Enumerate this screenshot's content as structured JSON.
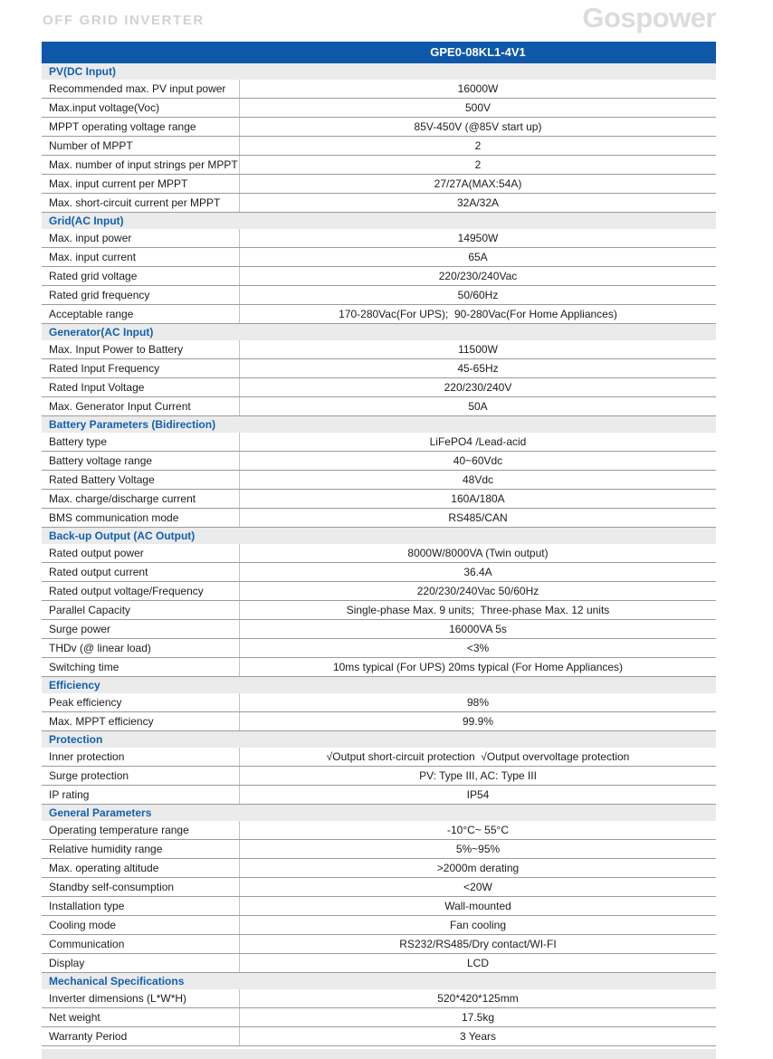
{
  "page": {
    "title": "OFF GRID INVERTER",
    "brand": "Gospower",
    "model": "GPE0-08KL1-4V1"
  },
  "colors": {
    "header_bar_blue": "#0f58a9",
    "section_title_blue": "#1360b0",
    "section_header_bg": "#ebebeb",
    "row_border_gray": "#9b9b9b",
    "title_gray": "#d2d2d6"
  },
  "sections": [
    {
      "title": "PV(DC Input)",
      "rows": [
        {
          "label": "Recommended max. PV input power",
          "value": "16000W"
        },
        {
          "label": "Max.input voltage(Voc)",
          "value": "500V"
        },
        {
          "label": "MPPT operating voltage range",
          "value": "85V-450V (@85V start up)"
        },
        {
          "label": "Number of MPPT",
          "value": "2"
        },
        {
          "label": "Max. number of input strings per MPPT",
          "value": "2"
        },
        {
          "label": "Max. input current per MPPT",
          "value": "27/27A(MAX:54A)"
        },
        {
          "label": "Max. short-circuit current per MPPT",
          "value": "32A/32A"
        }
      ]
    },
    {
      "title": "Grid(AC Input)",
      "rows": [
        {
          "label": "Max. input power",
          "value": "14950W"
        },
        {
          "label": "Max. input current",
          "value": "65A"
        },
        {
          "label": "Rated grid voltage",
          "value": "220/230/240Vac"
        },
        {
          "label": "Rated grid frequency",
          "value": "50/60Hz"
        },
        {
          "label": "Acceptable range",
          "value": "170-280Vac(For UPS);  90-280Vac(For Home Appliances)"
        }
      ]
    },
    {
      "title": "Generator(AC Input)",
      "rows": [
        {
          "label": "Max. Input Power to Battery",
          "value": "11500W"
        },
        {
          "label": "Rated Input Frequency",
          "value": "45-65Hz"
        },
        {
          "label": "Rated Input Voltage",
          "value": "220/230/240V"
        },
        {
          "label": "Max. Generator Input Current",
          "value": "50A"
        }
      ]
    },
    {
      "title": "Battery Parameters (Bidirection)",
      "rows": [
        {
          "label": "Battery type",
          "value": "LiFePO4 /Lead-acid"
        },
        {
          "label": "Battery voltage range",
          "value": "40~60Vdc"
        },
        {
          "label": "Rated Battery Voltage",
          "value": "48Vdc"
        },
        {
          "label": "Max. charge/discharge current",
          "value": "160A/180A"
        },
        {
          "label": "BMS communication mode",
          "value": "RS485/CAN"
        }
      ]
    },
    {
      "title": "Back-up Output (AC Output)",
      "rows": [
        {
          "label": "Rated output power",
          "value": "8000W/8000VA (Twin output)"
        },
        {
          "label": "Rated output current",
          "value": "36.4A"
        },
        {
          "label": "Rated output voltage/Frequency",
          "value": "220/230/240Vac 50/60Hz"
        },
        {
          "label": "Parallel Capacity",
          "value": "Single-phase Max. 9 units;  Three-phase Max. 12 units"
        },
        {
          "label": "Surge power",
          "value": "16000VA 5s"
        },
        {
          "label": "THDv (@ linear load)",
          "value": "<3%"
        },
        {
          "label": "Switching time",
          "value": "10ms typical (For UPS) 20ms typical (For Home Appliances)"
        }
      ]
    },
    {
      "title": "Efficiency",
      "rows": [
        {
          "label": "Peak efficiency",
          "value": "98%"
        },
        {
          "label": "Max. MPPT efficiency",
          "value": "99.9%"
        }
      ]
    },
    {
      "title": "Protection",
      "rows": [
        {
          "label": "Inner protection",
          "value": "√Output short-circuit protection  √Output overvoltage protection"
        },
        {
          "label": "Surge protection",
          "value": "PV: Type III, AC: Type III"
        },
        {
          "label": "IP rating",
          "value": "IP54"
        }
      ]
    },
    {
      "title": "General Parameters",
      "rows": [
        {
          "label": "Operating temperature range",
          "value": "-10°C~ 55°C"
        },
        {
          "label": "Relative humidity range",
          "value": "5%~95%"
        },
        {
          "label": "Max. operating altitude",
          "value": ">2000m derating"
        },
        {
          "label": "Standby self-consumption",
          "value": "<20W"
        },
        {
          "label": "Installation type",
          "value": "Wall-mounted"
        },
        {
          "label": "Cooling mode",
          "value": "Fan cooling"
        },
        {
          "label": "Communication",
          "value": "RS232/RS485/Dry contact/WI-FI"
        },
        {
          "label": "Display",
          "value": "LCD"
        }
      ]
    },
    {
      "title": "Mechanical Specifications",
      "rows": [
        {
          "label": "Inverter dimensions (L*W*H)",
          "value": "520*420*125mm"
        },
        {
          "label": "Net weight",
          "value": "17.5kg"
        },
        {
          "label": "Warranty Period",
          "value": "3 Years"
        }
      ]
    }
  ]
}
